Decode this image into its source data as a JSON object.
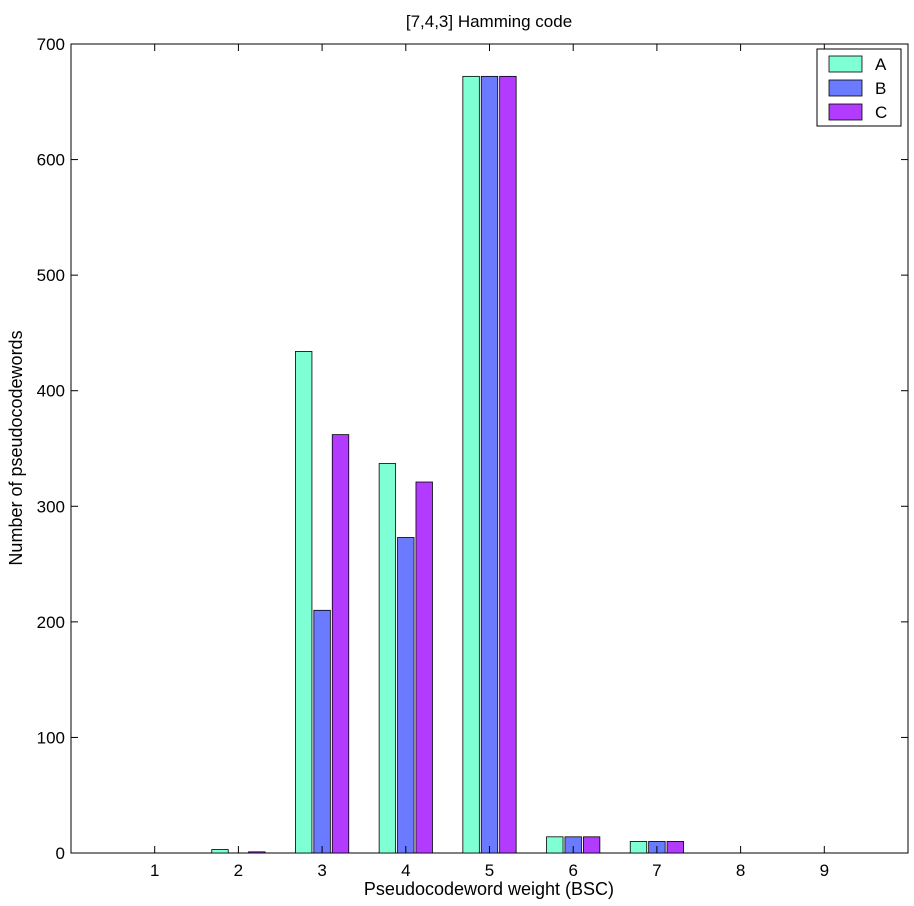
{
  "chart_data": {
    "type": "bar",
    "title": "[7,4,3] Hamming code",
    "xlabel": "Pseudocodeword weight (BSC)",
    "ylabel": "Number of pseudocodewords",
    "categories": [
      "1",
      "2",
      "3",
      "4",
      "5",
      "6",
      "7",
      "8",
      "9"
    ],
    "series": [
      {
        "name": "A",
        "color": "#7fffd4",
        "values": [
          0,
          3,
          434,
          337,
          672,
          14,
          10,
          0,
          0
        ]
      },
      {
        "name": "B",
        "color": "#6b7bff",
        "values": [
          0,
          0,
          210,
          273,
          672,
          14,
          10,
          0,
          0
        ]
      },
      {
        "name": "C",
        "color": "#b23bff",
        "values": [
          0,
          1,
          362,
          321,
          672,
          14,
          10,
          0,
          0
        ]
      }
    ],
    "yticks": [
      0,
      100,
      200,
      300,
      400,
      500,
      600,
      700
    ],
    "ylim": [
      0,
      700
    ],
    "xlim": [
      0,
      10
    ],
    "grid": false,
    "legend_position": "top-right"
  }
}
